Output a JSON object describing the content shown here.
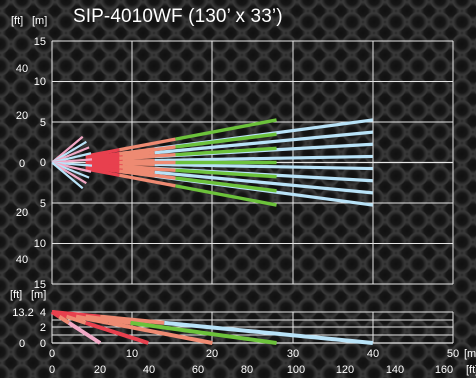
{
  "title": "SIP-4010WF (130’ x 33’)",
  "top_view": {
    "unit_ft": "[ft]",
    "unit_m": "[m]",
    "m_ticks": [
      "15",
      "10",
      "5",
      "0",
      "5",
      "10",
      "15"
    ],
    "ft_ticks": [
      "40",
      "20",
      "0",
      "20",
      "40"
    ]
  },
  "side_view": {
    "unit_ft": "[ft]",
    "unit_m": "[m]",
    "m_ticks": [
      "4",
      "2",
      "0"
    ],
    "ft_ticks": [
      "13.2",
      "0"
    ]
  },
  "x_axis": {
    "m_ticks": [
      "0",
      "10",
      "20",
      "30",
      "40",
      "50"
    ],
    "m_unit": "[m]",
    "ft_ticks": [
      "0",
      "20",
      "40",
      "60",
      "80",
      "100",
      "120",
      "140",
      "160"
    ],
    "ft_unit": "[ft]"
  },
  "colors": {
    "grid": "#e6e6e6",
    "pink": "#f2a8c6",
    "light_blue": "#b9e3f8",
    "red": "#e8404e",
    "salmon": "#ee8a72",
    "green": "#6cc23b"
  },
  "beams": {
    "far_range_m": 40,
    "far_spread_m": 5,
    "mid_range_m": 28,
    "mid_spread_m": 5,
    "near_range_m": 5
  }
}
